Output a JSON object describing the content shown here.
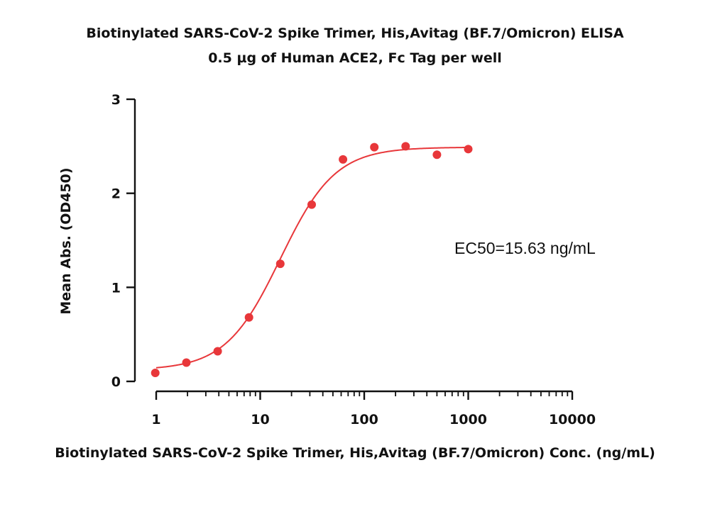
{
  "chart_data": {
    "type": "scatter",
    "title": "Biotinylated SARS-CoV-2 Spike Trimer, His,Avitag (BF.7/Omicron) ELISA",
    "subtitle": "0.5 µg of Human ACE2, Fc Tag per well",
    "xlabel": "Biotinylated SARS-CoV-2 Spike Trimer, His,Avitag (BF.7/Omicron) Conc. (ng/mL)",
    "ylabel": "Mean Abs. (OD450)",
    "x_scale": "log",
    "xlim": [
      1,
      10000
    ],
    "ylim": [
      0,
      3
    ],
    "x_ticks": [
      1,
      10,
      100,
      1000,
      10000
    ],
    "x_tick_labels": [
      "1",
      "10",
      "100",
      "1000",
      "10000"
    ],
    "y_ticks": [
      0,
      1,
      2,
      3
    ],
    "y_tick_labels": [
      "0",
      "1",
      "2",
      "3"
    ],
    "grid": false,
    "series": [
      {
        "color": "#e8373a",
        "points": [
          {
            "x": 0.98,
            "y": 0.09
          },
          {
            "x": 1.95,
            "y": 0.2
          },
          {
            "x": 3.9,
            "y": 0.32
          },
          {
            "x": 7.8,
            "y": 0.68
          },
          {
            "x": 15.6,
            "y": 1.25
          },
          {
            "x": 31.25,
            "y": 1.88
          },
          {
            "x": 62.5,
            "y": 2.36
          },
          {
            "x": 125,
            "y": 2.49
          },
          {
            "x": 250,
            "y": 2.5
          },
          {
            "x": 500,
            "y": 2.41
          },
          {
            "x": 1000,
            "y": 2.47
          }
        ],
        "fit": {
          "model": "4PL",
          "bottom": 0.12,
          "top": 2.49,
          "ec50": 15.63,
          "hill": 1.65,
          "x_range": [
            1,
            1000
          ]
        }
      }
    ],
    "annotations": [
      {
        "text": "EC50=15.63 ng/mL"
      }
    ]
  }
}
